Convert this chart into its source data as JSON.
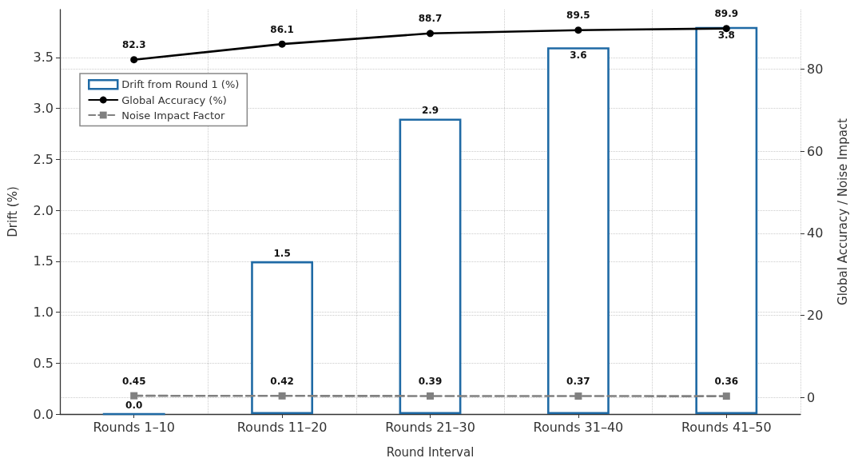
{
  "chart_data": {
    "type": "bar",
    "xlabel": "Round Interval",
    "ylabel": "Drift (%)",
    "y2label": "Global Accuracy / Noise Impact",
    "categories": [
      "Rounds 1–10",
      "Rounds 11–20",
      "Rounds 21–30",
      "Rounds 31–40",
      "Rounds 41–50"
    ],
    "series": [
      {
        "name": "Drift from Round 1 (%)",
        "color": "#1f6aa5",
        "values": [
          0.0,
          1.5,
          2.9,
          3.6,
          3.8
        ],
        "value_labels": [
          "0.0",
          "1.5",
          "2.9",
          "3.6",
          "3.8"
        ]
      },
      {
        "name": "Global Accuracy (%)",
        "type": "line",
        "axis": "y2",
        "color": "#000000",
        "marker": "circle",
        "line_style": "solid",
        "values": [
          82.3,
          86.1,
          88.7,
          89.5,
          89.9
        ]
      },
      {
        "name": "Noise Impact Factor",
        "type": "line",
        "axis": "y2",
        "color": "#808080",
        "marker": "square",
        "line_style": "dashed",
        "values": [
          0.45,
          0.42,
          0.39,
          0.37,
          0.36
        ]
      }
    ],
    "ylim": [
      0,
      3.97
    ],
    "yticks": [
      {
        "value": 0,
        "label": "0.0"
      },
      {
        "value": 0.5,
        "label": "0.5"
      },
      {
        "value": 1,
        "label": "1.0"
      },
      {
        "value": 1.5,
        "label": "1.5"
      },
      {
        "value": 2,
        "label": "2.0"
      },
      {
        "value": 2.5,
        "label": "2.5"
      },
      {
        "value": 3,
        "label": "3.0"
      },
      {
        "value": 3.5,
        "label": "3.5"
      }
    ],
    "y2lim": [
      -4,
      94.5
    ],
    "y2ticks": [
      0,
      20,
      40,
      60,
      80
    ],
    "data_labels": true,
    "grid": true,
    "legend": "top left"
  }
}
